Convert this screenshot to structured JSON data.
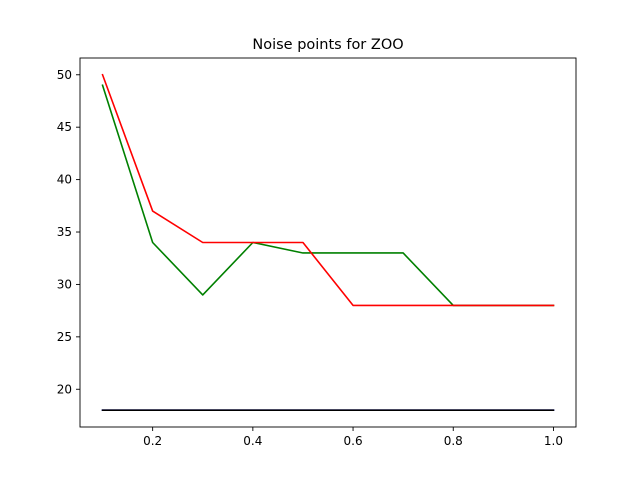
{
  "chart_data": {
    "type": "line",
    "title": "Noise points for ZOO",
    "xlabel": "",
    "ylabel": "",
    "xlim": [
      0.055,
      1.045
    ],
    "ylim": [
      16.4,
      51.6
    ],
    "x_ticks": [
      0.2,
      0.4,
      0.6,
      0.8,
      1.0
    ],
    "x_tick_labels": [
      "0.2",
      "0.4",
      "0.6",
      "0.8",
      "1.0"
    ],
    "y_ticks": [
      20,
      25,
      30,
      35,
      40,
      45,
      50
    ],
    "y_tick_labels": [
      "20",
      "25",
      "30",
      "35",
      "40",
      "45",
      "50"
    ],
    "grid": false,
    "x": [
      0.1,
      0.2,
      0.3,
      0.4,
      0.5,
      0.6,
      0.7,
      0.8,
      0.9,
      1.0
    ],
    "series": [
      {
        "color": "#0000ff",
        "values": [
          18,
          18,
          18,
          18,
          18,
          18,
          18,
          18,
          18,
          18
        ]
      },
      {
        "color": "#000000",
        "values": [
          18,
          18,
          18,
          18,
          18,
          18,
          18,
          18,
          18,
          18
        ]
      },
      {
        "color": "#008000",
        "values": [
          49,
          34,
          29,
          34,
          33,
          33,
          33,
          28,
          28,
          28
        ]
      },
      {
        "color": "#ff0000",
        "values": [
          50,
          37,
          34,
          34,
          34,
          28,
          28,
          28,
          28,
          28
        ]
      }
    ]
  }
}
